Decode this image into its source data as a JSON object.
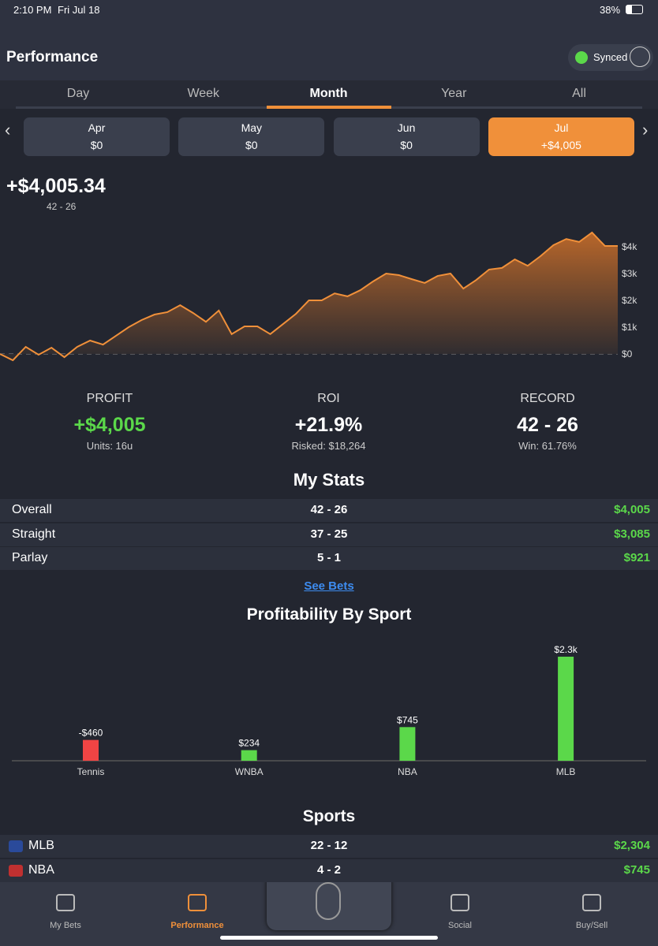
{
  "status": {
    "time": "2:10 PM",
    "date": "Fri Jul 18",
    "battery": "38%"
  },
  "header": {
    "title": "Performance",
    "sync": "Synced"
  },
  "tabs": {
    "items": [
      "Day",
      "Week",
      "Month",
      "Year",
      "All"
    ],
    "selected": 2
  },
  "months": {
    "items": [
      {
        "label": "Apr",
        "value": "$0"
      },
      {
        "label": "May",
        "value": "$0"
      },
      {
        "label": "Jun",
        "value": "$0"
      },
      {
        "label": "Jul",
        "value": "+$4,005"
      }
    ],
    "selected": 3
  },
  "total": {
    "value": "+$4,005.34",
    "record": "42 - 26"
  },
  "chart_data": [
    {
      "type": "line",
      "color": "#f0903a",
      "categories": [
        null,
        null,
        null,
        null,
        null,
        null,
        null,
        null,
        null,
        null,
        null,
        null,
        null,
        null,
        null,
        null,
        null,
        null,
        null,
        null,
        null,
        null,
        null,
        null,
        null,
        null,
        null,
        null,
        null,
        null,
        null,
        null,
        null,
        null,
        null,
        null,
        null,
        null,
        null,
        null,
        null,
        null,
        null,
        null,
        null,
        null,
        null,
        null,
        null
      ],
      "values": [
        0,
        -235,
        265,
        -30,
        235,
        -120,
        265,
        500,
        350,
        675,
        1000,
        1265,
        1470,
        1560,
        1820,
        1530,
        1200,
        1620,
        740,
        1030,
        1030,
        740,
        1120,
        1500,
        2000,
        2000,
        2260,
        2150,
        2380,
        2710,
        3000,
        2940,
        2790,
        2650,
        2910,
        3000,
        2440,
        2760,
        3150,
        3210,
        3530,
        3290,
        3650,
        4060,
        4290,
        4180,
        4530,
        4030,
        4030
      ],
      "ylim": [
        -600,
        4700
      ],
      "yticks": [
        {
          "value": 0,
          "label": "$0"
        },
        {
          "value": 1000,
          "label": "$1k"
        },
        {
          "value": 2000,
          "label": "$2k"
        },
        {
          "value": 3000,
          "label": "$3k"
        },
        {
          "value": 4000,
          "label": "$4k"
        }
      ]
    },
    {
      "type": "bar",
      "title": "Profitability By Sport",
      "categories": [
        "Tennis",
        "WNBA",
        "NBA",
        "MLB"
      ],
      "values": [
        -460,
        234,
        745,
        2304
      ],
      "value_labels": [
        "-$460",
        "$234",
        "$745",
        "$2.3k"
      ],
      "colors": [
        "#f04444",
        "#5bd84a",
        "#5bd84a",
        "#5bd84a"
      ]
    }
  ],
  "summary": [
    {
      "label": "PROFIT",
      "value": "+$4,005",
      "sub": "Units: 16u",
      "color": "#5bd84a"
    },
    {
      "label": "ROI",
      "value": "+21.9%",
      "sub": "Risked: $18,264",
      "color": "#ffffff"
    },
    {
      "label": "RECORD",
      "value": "42 - 26",
      "sub": "Win: 61.76%",
      "color": "#ffffff"
    }
  ],
  "my_stats": {
    "title": "My Stats",
    "rows": [
      [
        "Overall",
        "42 - 26",
        "$4,005"
      ],
      [
        "Straight",
        "37 - 25",
        "$3,085"
      ],
      [
        "Parlay",
        "5 - 1",
        "$921"
      ]
    ]
  },
  "see_bets": "See Bets",
  "sports": {
    "title": "Sports",
    "rows": [
      [
        "MLB",
        "22 - 12",
        "$2,304"
      ],
      [
        "NBA",
        "4 - 2",
        "$745"
      ]
    ]
  },
  "nav": {
    "items": [
      "My Bets",
      "Performance",
      "Social",
      "Buy/Sell"
    ],
    "selected": 1
  }
}
